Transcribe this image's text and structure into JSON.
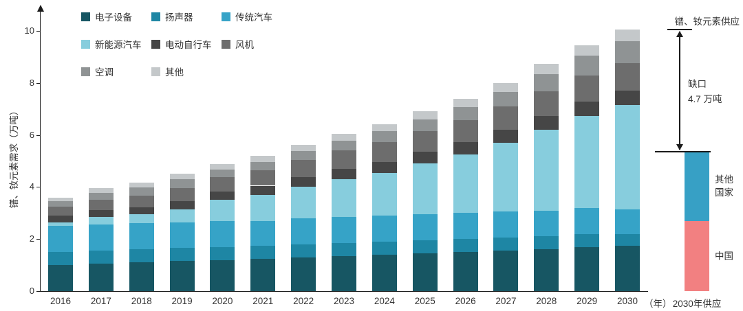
{
  "chart_data": {
    "type": "bar",
    "stacked": true,
    "title": "",
    "ylabel": "镨、钕元素需求（万吨）",
    "x_axis_suffix": "（年）",
    "ylim": [
      0,
      10
    ],
    "yticks": [
      0,
      2,
      4,
      6,
      8,
      10
    ],
    "grid": false,
    "legend_position": "top-left",
    "categories": [
      "2016",
      "2017",
      "2018",
      "2019",
      "2020",
      "2021",
      "2022",
      "2023",
      "2024",
      "2025",
      "2026",
      "2027",
      "2028",
      "2029",
      "2030"
    ],
    "series": [
      {
        "name": "电子设备",
        "color": "#175663",
        "values": [
          1.0,
          1.05,
          1.1,
          1.15,
          1.2,
          1.25,
          1.3,
          1.35,
          1.4,
          1.45,
          1.5,
          1.55,
          1.6,
          1.7,
          1.75
        ]
      },
      {
        "name": "扬声器",
        "color": "#1e86a4",
        "values": [
          0.5,
          0.5,
          0.5,
          0.5,
          0.5,
          0.5,
          0.5,
          0.5,
          0.5,
          0.5,
          0.5,
          0.5,
          0.5,
          0.48,
          0.45
        ]
      },
      {
        "name": "传统汽车",
        "color": "#36a3c7",
        "values": [
          1.0,
          1.0,
          1.0,
          1.0,
          1.0,
          0.95,
          1.0,
          1.0,
          1.0,
          1.0,
          1.0,
          1.0,
          1.0,
          1.0,
          0.95
        ]
      },
      {
        "name": "新能源汽车",
        "color": "#87cddd",
        "values": [
          0.15,
          0.3,
          0.35,
          0.5,
          0.8,
          1.0,
          1.2,
          1.45,
          1.65,
          1.95,
          2.25,
          2.65,
          3.1,
          3.55,
          4.0
        ]
      },
      {
        "name": "电动自行车",
        "color": "#464646",
        "values": [
          0.25,
          0.27,
          0.28,
          0.3,
          0.32,
          0.35,
          0.38,
          0.4,
          0.42,
          0.45,
          0.47,
          0.5,
          0.52,
          0.55,
          0.55
        ]
      },
      {
        "name": "风机",
        "color": "#6d6d6d",
        "values": [
          0.35,
          0.4,
          0.45,
          0.5,
          0.55,
          0.6,
          0.65,
          0.7,
          0.75,
          0.8,
          0.85,
          0.9,
          0.95,
          1.0,
          1.05
        ]
      },
      {
        "name": "空调",
        "color": "#8f9394",
        "values": [
          0.2,
          0.25,
          0.3,
          0.35,
          0.3,
          0.32,
          0.35,
          0.38,
          0.42,
          0.45,
          0.5,
          0.55,
          0.68,
          0.77,
          0.85
        ]
      },
      {
        "name": "其他",
        "color": "#c4c8ca",
        "values": [
          0.15,
          0.18,
          0.2,
          0.22,
          0.2,
          0.22,
          0.25,
          0.27,
          0.28,
          0.3,
          0.32,
          0.35,
          0.38,
          0.4,
          0.45
        ]
      }
    ],
    "legend_rows": [
      [
        0,
        1,
        2
      ],
      [
        3,
        4,
        5
      ],
      [
        6,
        7
      ]
    ],
    "totals": [
      3.6,
      3.95,
      4.18,
      4.52,
      4.87,
      5.19,
      5.63,
      6.05,
      6.42,
      6.9,
      7.39,
      8.0,
      8.73,
      9.45,
      10.05
    ],
    "supply": {
      "category_label": "2030年供应",
      "annotation_title": "镨、钕元素供应",
      "gap_label": [
        "缺口",
        "4.7 万吨"
      ],
      "gap_value": 4.7,
      "segments": [
        {
          "name": "中国",
          "color": "#f28081",
          "value": 2.7
        },
        {
          "name": "其他国家",
          "color": "#37a0c5",
          "value": 2.65
        }
      ]
    }
  }
}
